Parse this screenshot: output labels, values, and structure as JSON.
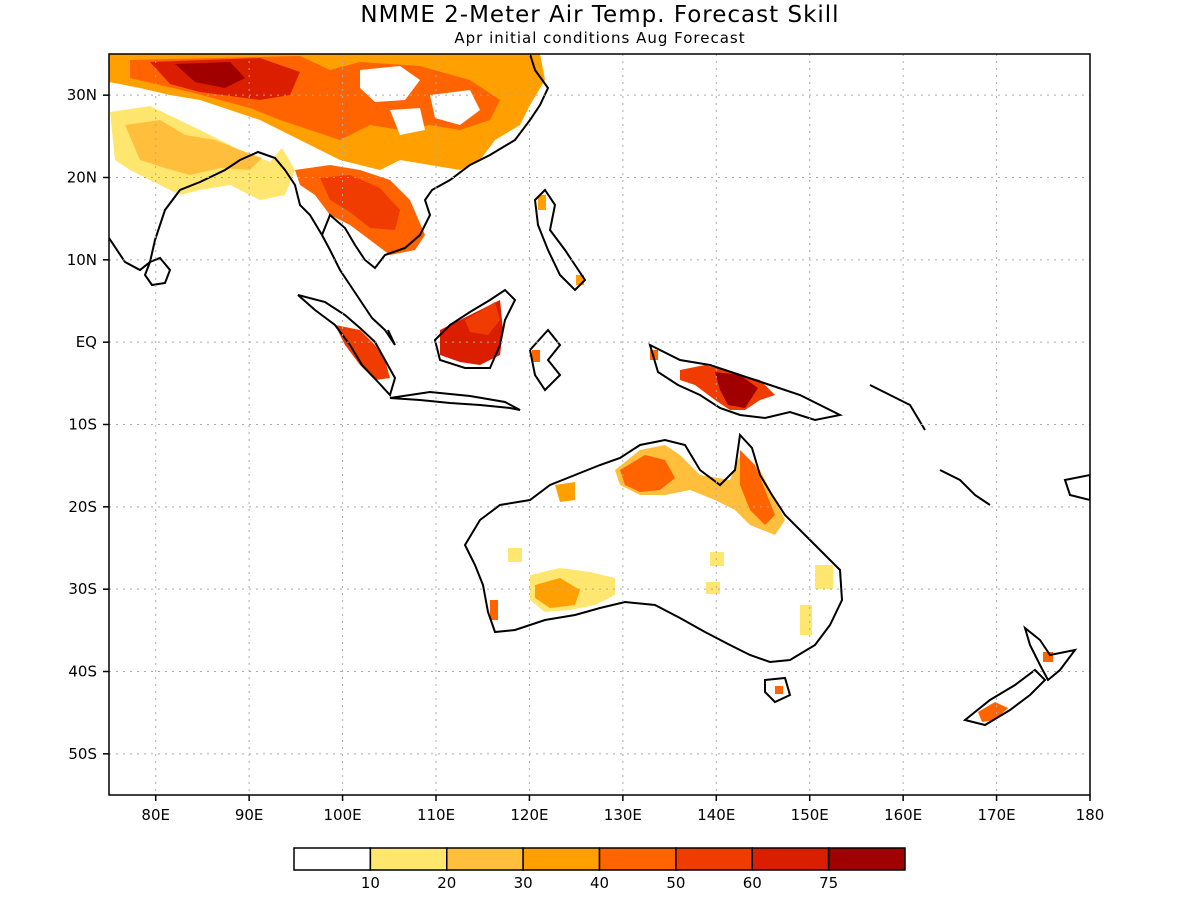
{
  "title": "NMME 2-Meter Air Temp. Forecast Skill",
  "subtitle": "Apr initial conditions  Aug Forecast",
  "map": {
    "region": "Indo-Pacific / Maritime Continent / Australia",
    "lon_range": [
      75,
      180
    ],
    "lat_range": [
      -55,
      35
    ],
    "grid": true,
    "lon_ticks": [
      "80E",
      "90E",
      "100E",
      "110E",
      "120E",
      "130E",
      "140E",
      "150E",
      "160E",
      "170E",
      "180"
    ],
    "lat_ticks": [
      "30N",
      "20N",
      "10N",
      "EQ",
      "10S",
      "20S",
      "30S",
      "40S",
      "50S"
    ]
  },
  "colorbar": {
    "colors": [
      "#ffffff",
      "#ffe66e",
      "#ffbe3c",
      "#ffa000",
      "#ff6400",
      "#f03c00",
      "#dc1e00",
      "#a00000"
    ],
    "labels": [
      "10",
      "20",
      "30",
      "40",
      "50",
      "60",
      "75"
    ]
  }
}
